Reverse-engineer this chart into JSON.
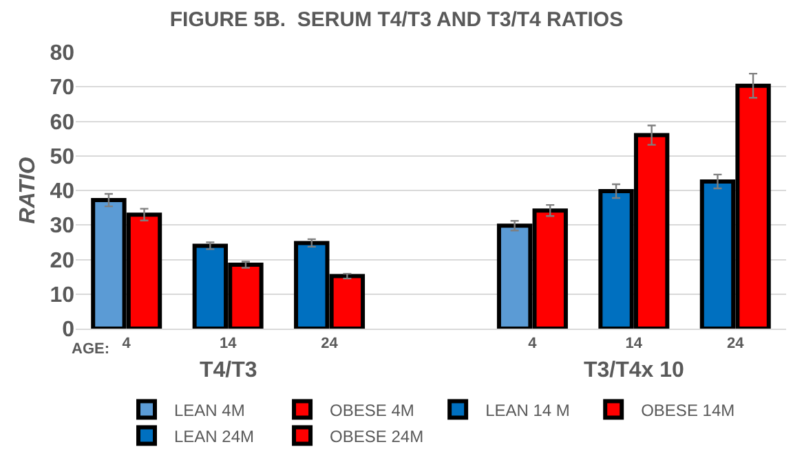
{
  "chart_data": {
    "type": "bar",
    "title": "FIGURE 5B.  SERUM T4/T3 AND T3/T4 RATIOS",
    "ylabel": "RATIO",
    "categories": [
      "4",
      "14",
      "24",
      null,
      "4",
      "14",
      "24"
    ],
    "annotations": [
      "AGE:",
      "T4/T3",
      "T3/T4x 10"
    ],
    "series": [
      {
        "name": "LEAN 4M",
        "color": "#5b9bd5",
        "values": [
          37.2,
          null,
          null,
          null,
          29.8,
          null,
          null
        ],
        "errors": [
          1.8,
          null,
          null,
          null,
          1.4,
          null,
          null
        ]
      },
      {
        "name": "OBESE 4M",
        "color": "#ff0000",
        "values": [
          33,
          null,
          null,
          null,
          34.2,
          null,
          null
        ],
        "errors": [
          1.7,
          null,
          null,
          null,
          1.6,
          null,
          null
        ]
      },
      {
        "name": "LEAN 14 M",
        "color": "#0070c0",
        "values": [
          null,
          24,
          null,
          null,
          null,
          39.8,
          null
        ],
        "errors": [
          null,
          1,
          null,
          null,
          null,
          2,
          null
        ]
      },
      {
        "name": "OBESE 14M",
        "color": "#ff0000",
        "values": [
          null,
          18.5,
          null,
          null,
          null,
          56,
          null
        ],
        "errors": [
          null,
          0.9,
          null,
          null,
          null,
          2.8,
          null
        ]
      },
      {
        "name": "LEAN 24M",
        "color": "#0070c0",
        "values": [
          null,
          null,
          24.8,
          null,
          null,
          null,
          42.6
        ],
        "errors": [
          null,
          null,
          1.1,
          null,
          null,
          null,
          2
        ]
      },
      {
        "name": "OBESE 24M",
        "color": "#ff0000",
        "values": [
          null,
          null,
          15.2,
          null,
          null,
          null,
          70.3
        ],
        "errors": [
          null,
          null,
          0.7,
          null,
          null,
          null,
          3.5
        ]
      }
    ],
    "ylim": [
      0,
      80
    ],
    "yticks": [
      0,
      10,
      20,
      30,
      40,
      50,
      60,
      70,
      80
    ],
    "grid": "y",
    "legend": "bottom"
  }
}
